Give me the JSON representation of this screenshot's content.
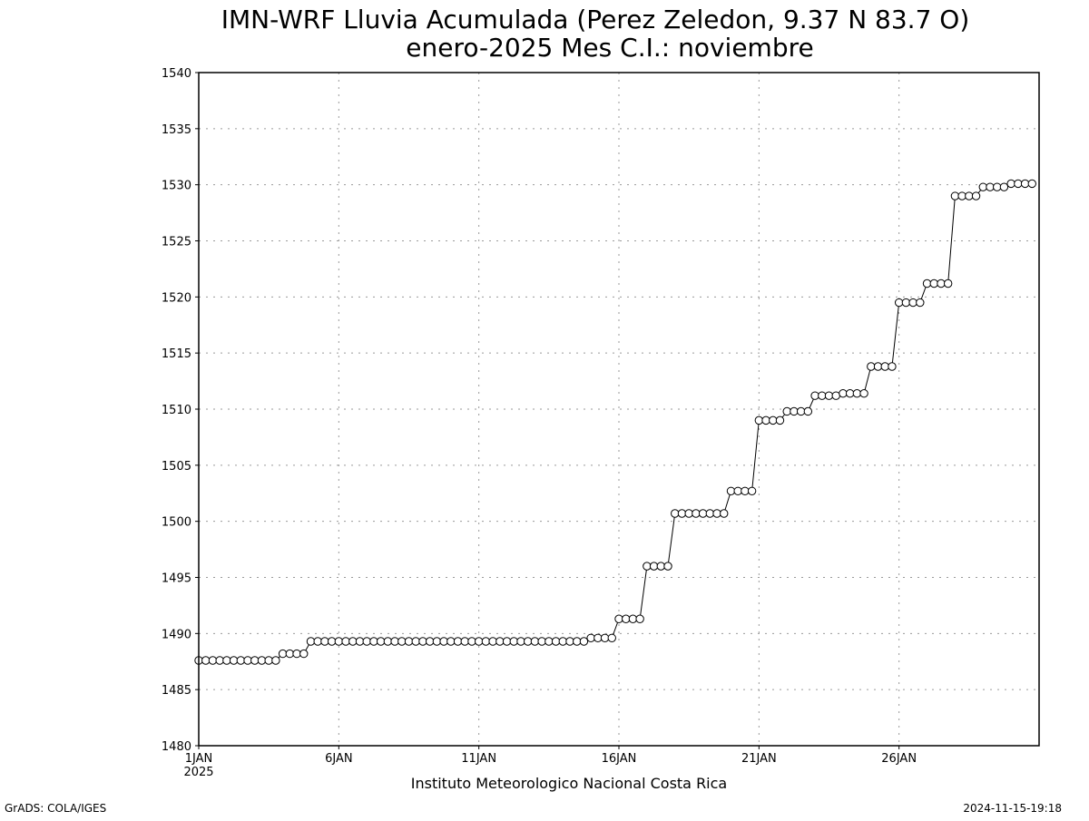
{
  "chart_data": {
    "type": "line",
    "title": "IMN-WRF  Lluvia Acumulada (Perez Zeledon, 9.37  N 83.7  O)",
    "subtitle": "enero-2025 Mes C.I.: noviembre",
    "xlabel": "Instituto Meteorologico Nacional Costa Rica",
    "ylabel": "",
    "ylim": [
      1480,
      1540
    ],
    "xlim_days": [
      1,
      31
    ],
    "yticks": [
      1480,
      1485,
      1490,
      1495,
      1500,
      1505,
      1510,
      1515,
      1520,
      1525,
      1530,
      1535,
      1540
    ],
    "xtick_labels": [
      {
        "day": 1,
        "label": "1JAN",
        "sub": "2025"
      },
      {
        "day": 6,
        "label": "6JAN",
        "sub": ""
      },
      {
        "day": 11,
        "label": "11JAN",
        "sub": ""
      },
      {
        "day": 16,
        "label": "16JAN",
        "sub": ""
      },
      {
        "day": 21,
        "label": "21JAN",
        "sub": ""
      },
      {
        "day": 26,
        "label": "26JAN",
        "sub": ""
      }
    ],
    "grid": true,
    "marker": "open-circle",
    "line_color": "#000000",
    "series": [
      {
        "x_step_hours": 6,
        "values": [
          1487.6,
          1487.6,
          1487.6,
          1487.6,
          1487.6,
          1487.6,
          1487.6,
          1487.6,
          1487.6,
          1487.6,
          1487.6,
          1487.6,
          1488.2,
          1488.2,
          1488.2,
          1488.2,
          1489.3,
          1489.3,
          1489.3,
          1489.3,
          1489.3,
          1489.3,
          1489.3,
          1489.3,
          1489.3,
          1489.3,
          1489.3,
          1489.3,
          1489.3,
          1489.3,
          1489.3,
          1489.3,
          1489.3,
          1489.3,
          1489.3,
          1489.3,
          1489.3,
          1489.3,
          1489.3,
          1489.3,
          1489.3,
          1489.3,
          1489.3,
          1489.3,
          1489.3,
          1489.3,
          1489.3,
          1489.3,
          1489.3,
          1489.3,
          1489.3,
          1489.3,
          1489.3,
          1489.3,
          1489.3,
          1489.3,
          1489.6,
          1489.6,
          1489.6,
          1489.6,
          1491.3,
          1491.3,
          1491.3,
          1491.3,
          1496.0,
          1496.0,
          1496.0,
          1496.0,
          1500.7,
          1500.7,
          1500.7,
          1500.7,
          1500.7,
          1500.7,
          1500.7,
          1500.7,
          1502.7,
          1502.7,
          1502.7,
          1502.7,
          1509.0,
          1509.0,
          1509.0,
          1509.0,
          1509.8,
          1509.8,
          1509.8,
          1509.8,
          1511.2,
          1511.2,
          1511.2,
          1511.2,
          1511.4,
          1511.4,
          1511.4,
          1511.4,
          1513.8,
          1513.8,
          1513.8,
          1513.8,
          1519.5,
          1519.5,
          1519.5,
          1519.5,
          1521.2,
          1521.2,
          1521.2,
          1521.2,
          1529.0,
          1529.0,
          1529.0,
          1529.0,
          1529.8,
          1529.8,
          1529.8,
          1529.8,
          1530.1,
          1530.1,
          1530.1,
          1530.1
        ]
      }
    ]
  },
  "footer": {
    "left": "GrADS: COLA/IGES",
    "right": "2024-11-15-19:18"
  }
}
